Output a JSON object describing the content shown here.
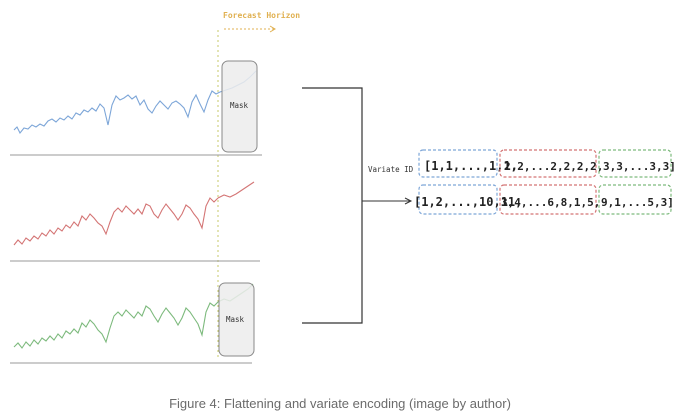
{
  "forecast_label": "Forecast Horizon",
  "mask_label": "Mask",
  "variate_id_label": "Variate ID",
  "variate_ids": [
    "[1,1,...,1,1,",
    "2,2,...2,2,2,2,",
    "3,3,...3,3]"
  ],
  "flattened_values": [
    "[1,2,...,10,11,",
    "3,4,...6,8,1,5,",
    "9,1,...5,3]"
  ],
  "caption": "Figure 4: Flattening and variate encoding (image by author)",
  "colors": {
    "blue": "#7da6d8",
    "red": "#d47575",
    "green": "#7dba7d",
    "forecast": "#e0b050",
    "axis": "#9a9a9a",
    "mask_fill": "#ececec",
    "mask_stroke": "#8a8a8a"
  }
}
